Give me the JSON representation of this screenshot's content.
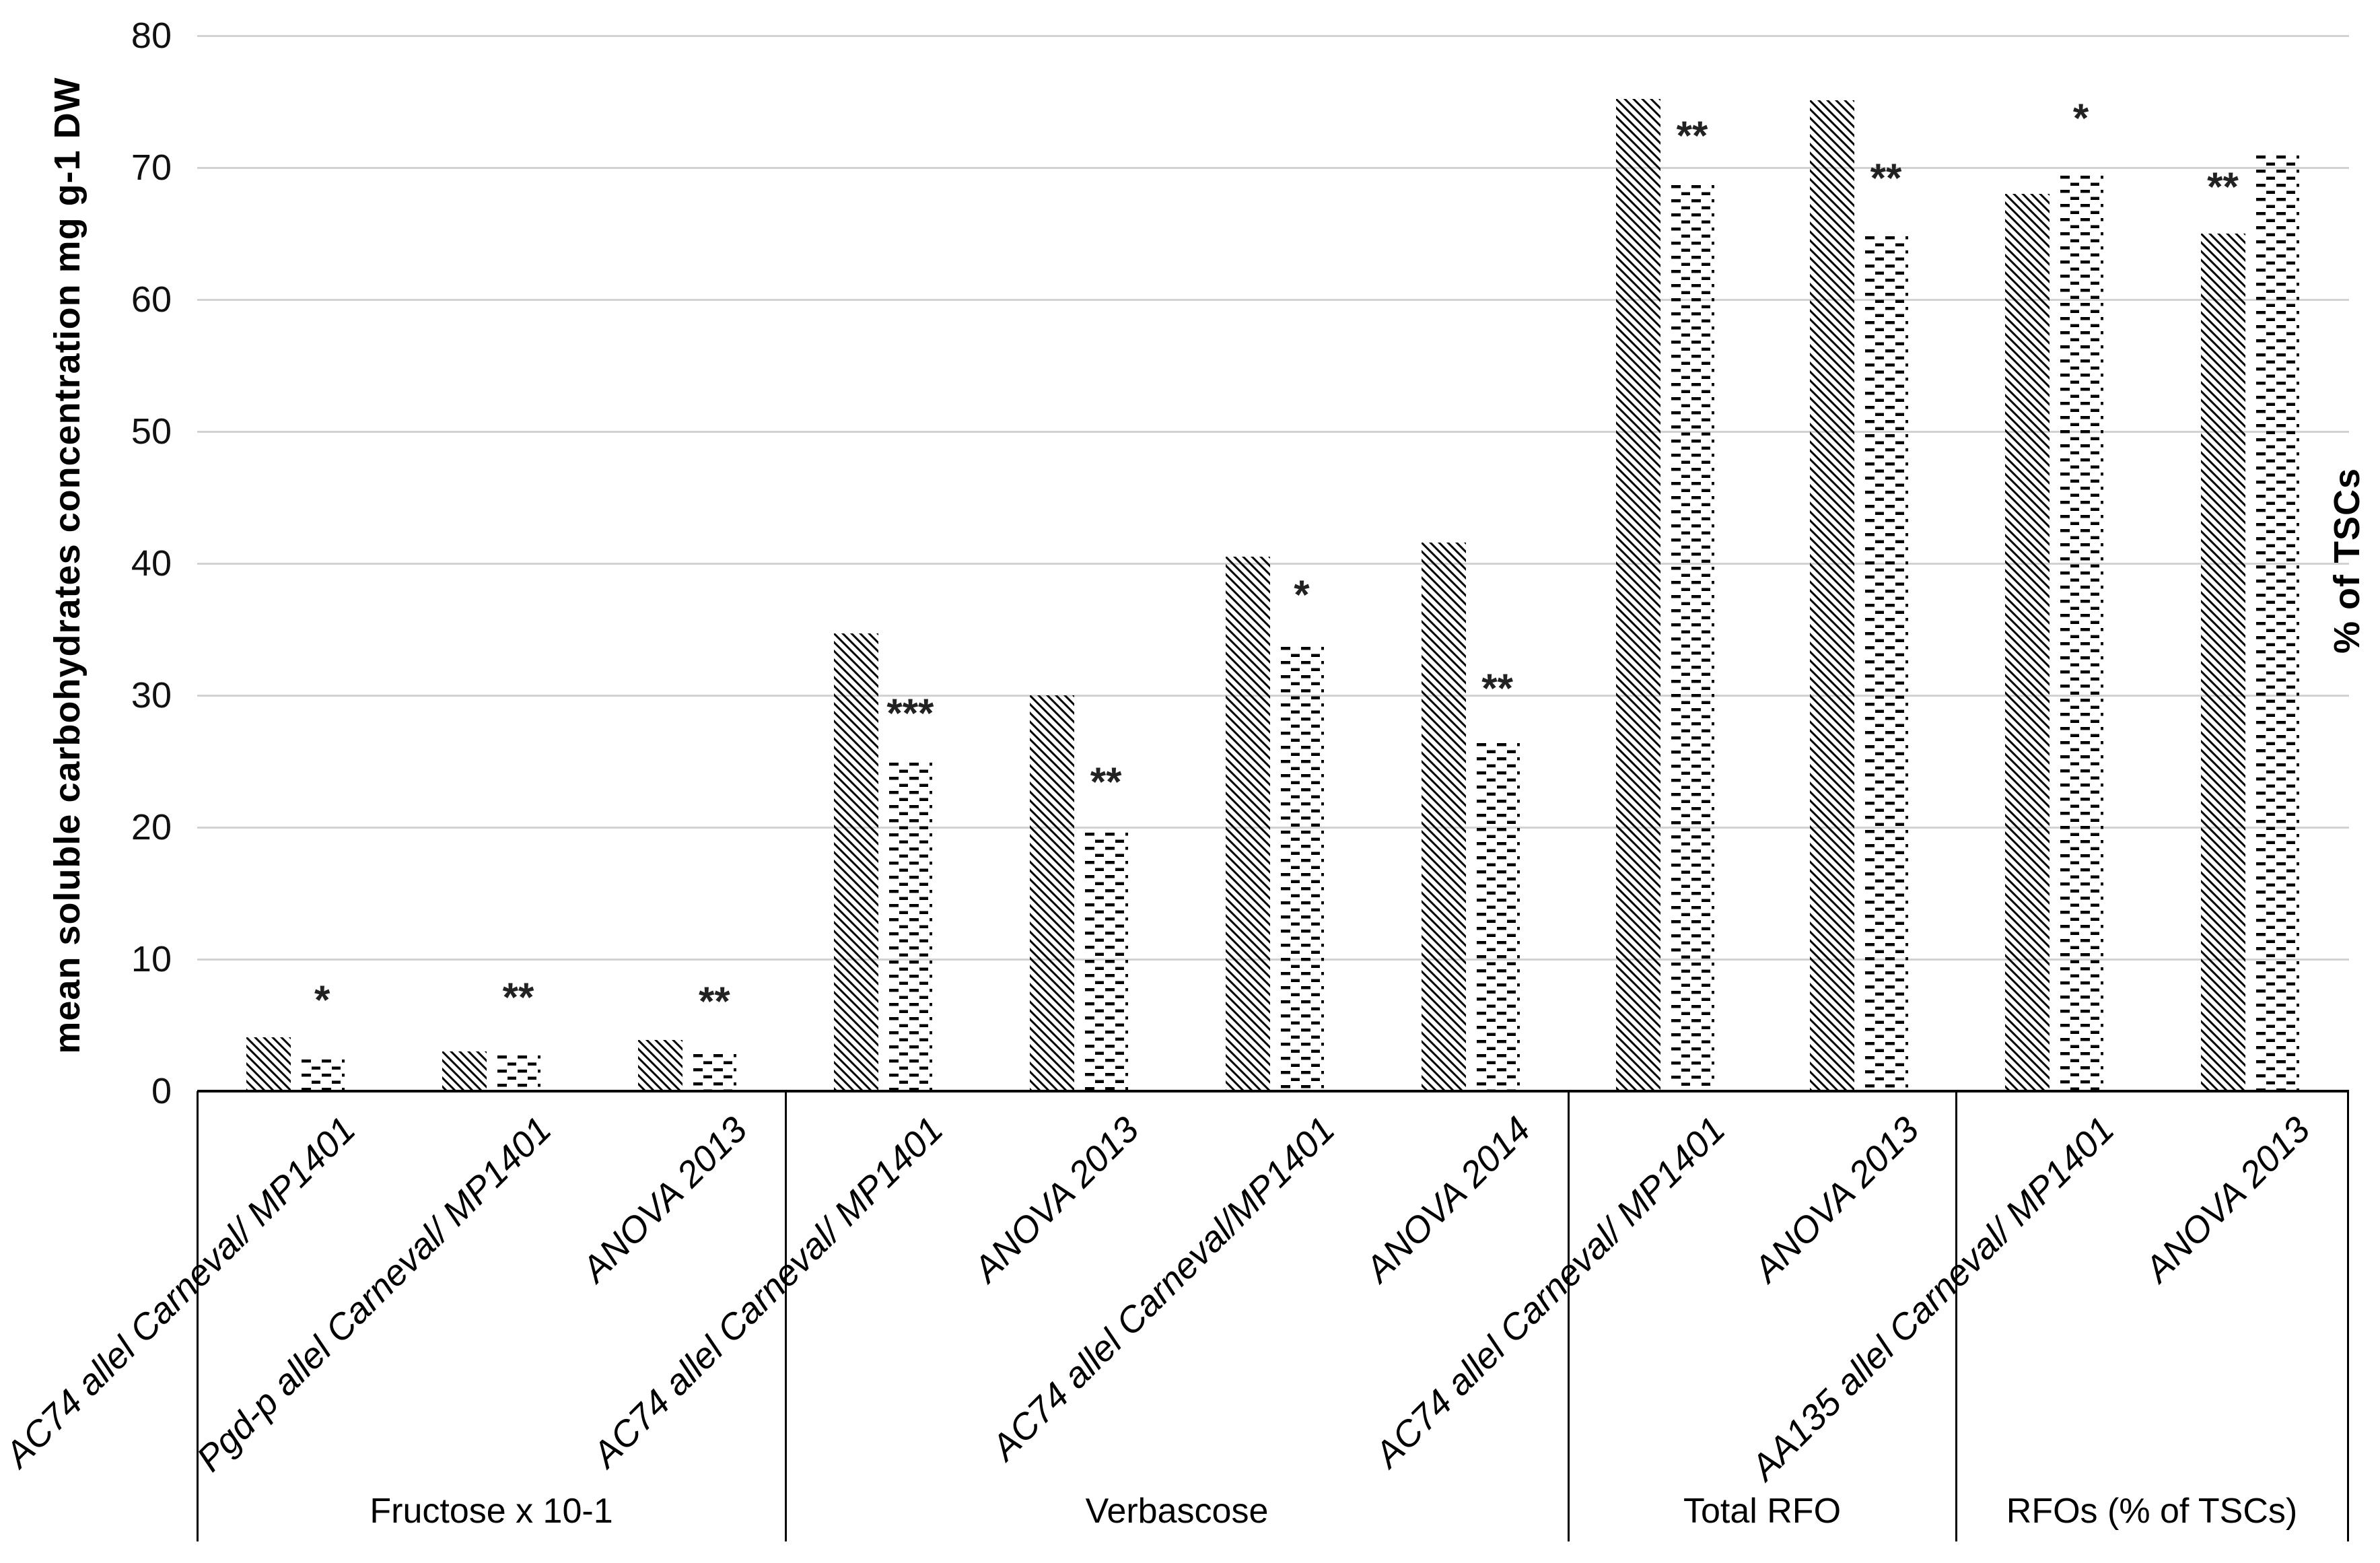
{
  "chart_data": {
    "type": "bar",
    "title": "",
    "ylabel": "mean soluble carbohydrates concentration mg g-1 DW",
    "ylabel_right": "% of TSCs",
    "ylim": [
      0,
      80
    ],
    "yticks": [
      0,
      10,
      20,
      30,
      40,
      50,
      60,
      70,
      80
    ],
    "grid": "horizontal",
    "legend": "none",
    "series_patterns": [
      {
        "name": "diagonal-hatch-bar",
        "pattern": "diagonal-hatch",
        "color": "#000000"
      },
      {
        "name": "horizontal-dash-bar",
        "pattern": "staggered-horizontal-dashes",
        "color": "#000000"
      }
    ],
    "significance_note": "asterisks mark significance above bars",
    "groups": [
      {
        "label": "Fructose x 10-1",
        "pairs": [
          {
            "category": "AC74 allel Carneval/ MP1401",
            "hatched": 4.1,
            "dashed": 2.5,
            "sig": "*",
            "sig_over": "dashed",
            "sig_y": 6.9
          },
          {
            "category": "Pgd-p allel Carneval/ MP1401",
            "hatched": 3.0,
            "dashed": 2.8,
            "sig": "**",
            "sig_over": "dashed",
            "sig_y": 7.1
          },
          {
            "category": "ANOVA 2013",
            "hatched": 3.9,
            "dashed": 2.9,
            "sig": "**",
            "sig_over": "dashed",
            "sig_y": 6.8
          }
        ]
      },
      {
        "label": "Verbascose",
        "pairs": [
          {
            "category": "AC74 allel Carneval/ MP1401",
            "hatched": 34.7,
            "dashed": 25.0,
            "sig": "***",
            "sig_over": "dashed",
            "sig_y": 28.6
          },
          {
            "category": "ANOVA 2013",
            "hatched": 30.0,
            "dashed": 19.7,
            "sig": "**",
            "sig_over": "dashed",
            "sig_y": 23.4
          },
          {
            "category": "AC74 allel Carneval/MP1401",
            "hatched": 40.5,
            "dashed": 33.8,
            "sig": "*",
            "sig_over": "dashed",
            "sig_y": 37.6
          },
          {
            "category": "ANOVA 2014",
            "hatched": 41.6,
            "dashed": 26.5,
            "sig": "**",
            "sig_over": "dashed",
            "sig_y": 30.5
          }
        ]
      },
      {
        "label": "Total RFO",
        "pairs": [
          {
            "category": "AC74 allel Carneval/ MP1401",
            "hatched": 75.2,
            "dashed": 68.8,
            "sig": "**",
            "sig_over": "dashed",
            "sig_y": 72.4
          },
          {
            "category": "ANOVA 2013",
            "hatched": 75.1,
            "dashed": 64.9,
            "sig": "**",
            "sig_over": "dashed",
            "sig_y": 69.2
          }
        ]
      },
      {
        "label": "RFOs (% of TSCs)",
        "pairs": [
          {
            "category": "AA135 allel Carneval/ MP1401",
            "hatched": 68.0,
            "dashed": 69.5,
            "sig": "*",
            "sig_over": "dashed",
            "sig_y": 73.7
          },
          {
            "category": "ANOVA 2013",
            "hatched": 65.0,
            "dashed": 71.0,
            "sig": "**",
            "sig_over": "hatched",
            "sig_y": 68.5
          }
        ]
      }
    ]
  }
}
